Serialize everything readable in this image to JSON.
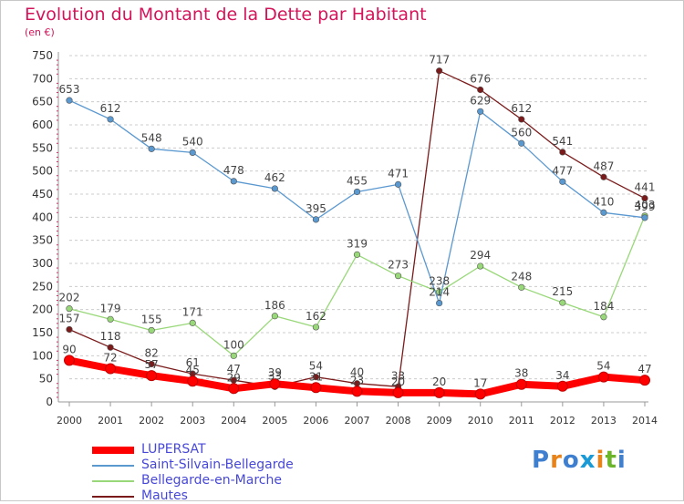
{
  "title": "Evolution du Montant de la Dette par Habitant",
  "subtitle": "(en €)",
  "logo": {
    "text": "Proxiti",
    "letter_colors": [
      "#3f7fcf",
      "#e8831a",
      "#3f7fcf",
      "#1a9ad6",
      "#e8831a",
      "#6bb52a",
      "#3f7fcf"
    ]
  },
  "chart_data": {
    "type": "line",
    "title": "Evolution du Montant de la Dette par Habitant",
    "subtitle": "(en €)",
    "x": [
      "2000",
      "2001",
      "2002",
      "2003",
      "2004",
      "2005",
      "2006",
      "2007",
      "2008",
      "2009",
      "2010",
      "2011",
      "2012",
      "2013",
      "2014"
    ],
    "ylim": [
      0,
      750
    ],
    "y_ticks": [
      "0",
      "50",
      "100",
      "150",
      "200",
      "250",
      "300",
      "350",
      "400",
      "450",
      "500",
      "550",
      "600",
      "650",
      "700",
      "750"
    ],
    "grid": "horizontal dashed",
    "legend_position": "bottom-left",
    "series": [
      {
        "name": "Mautes",
        "color": "#7a1a1a",
        "values": [
          157,
          118,
          82,
          61,
          47,
          33,
          54,
          40,
          33,
          717,
          676,
          612,
          541,
          487,
          441
        ],
        "labels": [
          "157",
          "118",
          "82",
          "61",
          "47",
          "33",
          "54",
          "40",
          "33",
          "717",
          "676",
          "612",
          "541",
          "487",
          "441"
        ]
      },
      {
        "name": "Bellegarde-en-Marche",
        "color": "#98d878",
        "values": [
          202,
          179,
          155,
          171,
          100,
          186,
          162,
          319,
          273,
          238,
          294,
          248,
          215,
          184,
          403
        ],
        "labels": [
          "202",
          "179",
          "155",
          "171",
          "100",
          "186",
          "162",
          "319",
          "273",
          "238",
          "294",
          "248",
          "215",
          "184",
          "403"
        ]
      },
      {
        "name": "Saint-Silvain-Bellegarde",
        "color": "#5a98d0",
        "values": [
          653,
          612,
          548,
          540,
          478,
          462,
          395,
          455,
          471,
          214,
          629,
          560,
          477,
          410,
          399
        ],
        "labels": [
          "653",
          "612",
          "548",
          "540",
          "478",
          "462",
          "395",
          "455",
          "471",
          "214",
          "629",
          "560",
          "477",
          "410",
          "399"
        ]
      },
      {
        "name": "LUPERSAT",
        "color": "#ff0000",
        "values": [
          90,
          72,
          57,
          45,
          29,
          39,
          31,
          23,
          20,
          20,
          17,
          38,
          34,
          54,
          47
        ],
        "labels": [
          "90",
          "72",
          "57",
          "45",
          "29",
          "39",
          "31",
          "23",
          "20",
          "20",
          "17",
          "38",
          "34",
          "54",
          "47"
        ]
      }
    ],
    "legend_order": [
      "LUPERSAT",
      "Saint-Silvain-Bellegarde",
      "Bellegarde-en-Marche",
      "Mautes"
    ]
  }
}
